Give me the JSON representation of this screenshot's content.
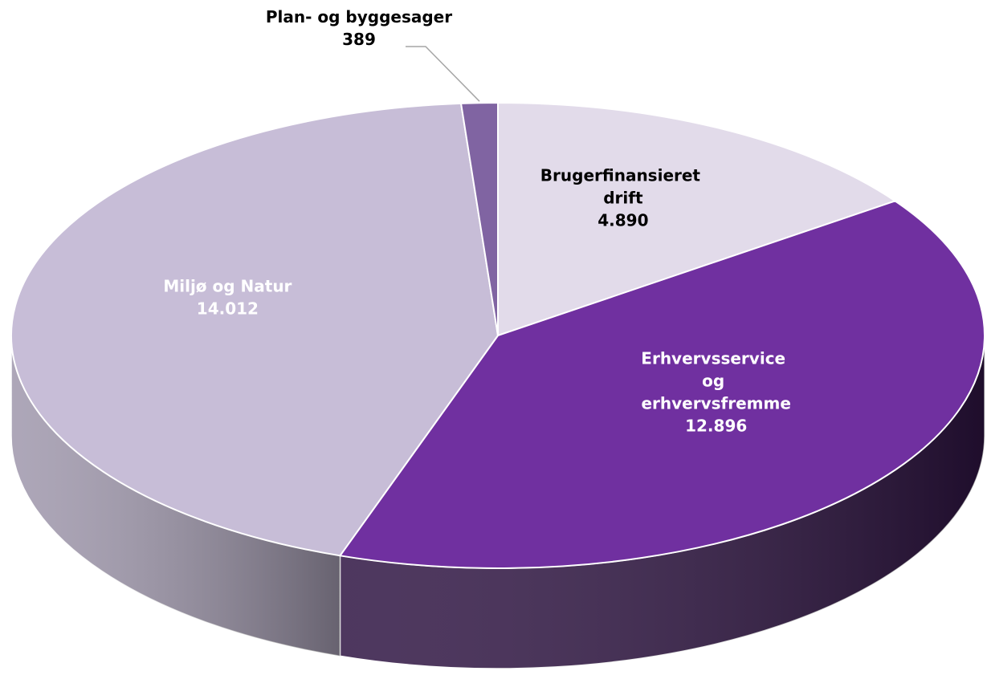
{
  "chart_data": {
    "type": "pie",
    "categories": [
      "Brugerfinansieret drift",
      "Erhvervsservice og erhvervsfremme",
      "Miljø og Natur",
      "Plan- og byggesager"
    ],
    "values": [
      4890,
      12896,
      14012,
      389
    ],
    "value_labels": [
      "4.890",
      "12.896",
      "14.012",
      "389"
    ],
    "colors": [
      "#e2dbea",
      "#7030a0",
      "#c7bdd7",
      "#8064a2"
    ],
    "label_colors": [
      "#000000",
      "#ffffff",
      "#ffffff",
      "#000000"
    ]
  }
}
